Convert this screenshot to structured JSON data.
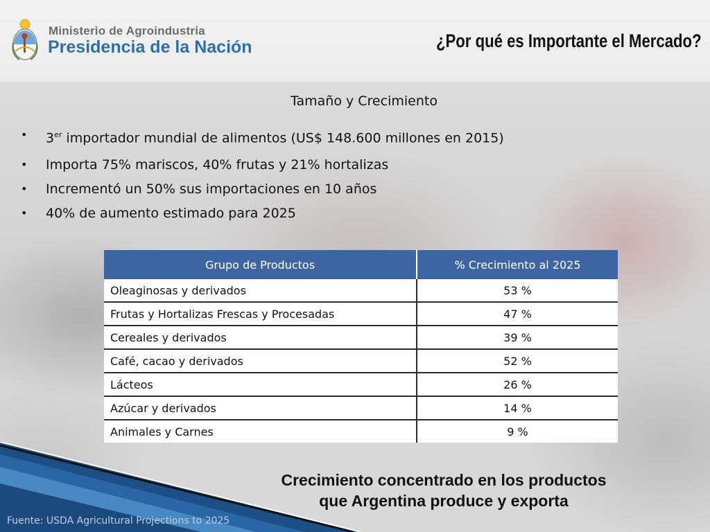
{
  "header": {
    "org_line1": "Ministerio de Agroindustria",
    "org_line2": "Presidencia de la Nación",
    "title": "¿Por qué es Importante el Mercado?"
  },
  "section_title": "Tamaño y Crecimiento",
  "bullets": [
    {
      "text_a": "3",
      "sup": "er",
      "text_b": " importador mundial de alimentos (US$ 148.600 millones en 2015)"
    },
    {
      "text": "Importa 75% mariscos, 40% frutas y 21% hortalizas"
    },
    {
      "text": "Incrementó un 50% sus importaciones en 10 años"
    },
    {
      "text": "40% de aumento estimado para 2025"
    }
  ],
  "bullet_glyph": "•",
  "table": {
    "headers": [
      "Grupo de Productos",
      "% Crecimiento al 2025"
    ],
    "rows": [
      {
        "group": "Oleaginosas y derivados",
        "growth": "53 %"
      },
      {
        "group": "Frutas y Hortalizas Frescas y Procesadas",
        "growth": "47 %"
      },
      {
        "group": "Cereales y derivados",
        "growth": "39 %"
      },
      {
        "group": "Café, cacao y derivados",
        "growth": "52 %"
      },
      {
        "group": "Lácteos",
        "growth": "26 %"
      },
      {
        "group": "Azúcar y derivados",
        "growth": "14 %"
      },
      {
        "group": "Animales y Carnes",
        "growth": "9 %"
      }
    ]
  },
  "conclusion": {
    "line1": "Crecimiento concentrado en los productos",
    "line2": "que Argentina produce y exporta"
  },
  "source": "Fuente: USDA Agricultural Projections to 2025",
  "colors": {
    "header_blue": "#3d64a3",
    "org_blue": "#2f6fa8",
    "stripe_dark": "#1c4f85",
    "stripe_light": "#4f8fc8"
  },
  "icons": {
    "crest": "argentina-coat-of-arms-icon"
  }
}
